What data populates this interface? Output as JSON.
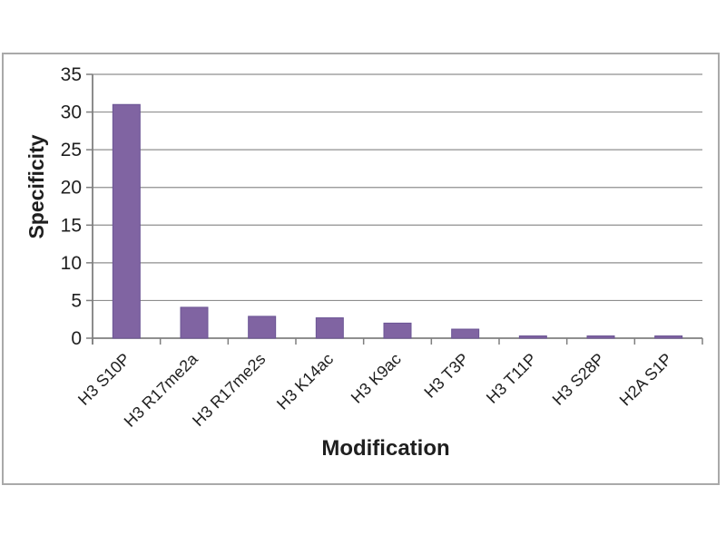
{
  "chart_data": {
    "type": "bar",
    "categories": [
      "H3 S10P",
      "H3 R17me2a",
      "H3 R17me2s",
      "H3 K14ac",
      "H3 K9ac",
      "H3 T3P",
      "H3 T11P",
      "H3 S28P",
      "H2A S1P"
    ],
    "values": [
      31,
      4.1,
      2.9,
      2.7,
      2.0,
      1.2,
      0.3,
      0.3,
      0.3
    ],
    "title": "",
    "xlabel": "Modification",
    "ylabel": "Specificity",
    "ylim": [
      0,
      35
    ],
    "yticks": [
      0,
      5,
      10,
      15,
      20,
      25,
      30,
      35
    ],
    "grid": true,
    "legend": "none",
    "bar_color": "#8064A2",
    "bar_border_color": "#6B5594",
    "gridline_color": "#8F8F8F",
    "axis_color": "#7F7F7F",
    "text_color": "#1F1F1F",
    "frame_border_color": "#A9A9A9"
  }
}
